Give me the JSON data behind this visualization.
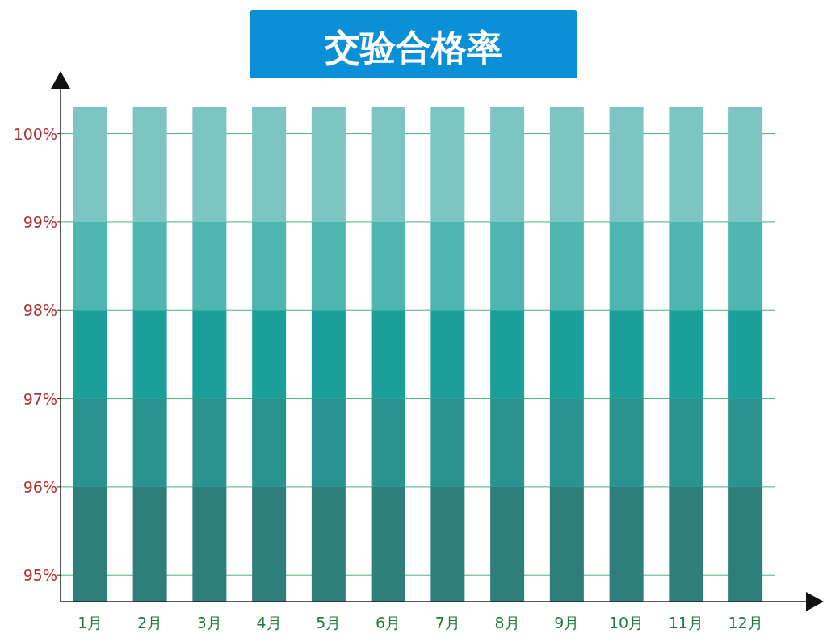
{
  "chart_data": {
    "type": "bar",
    "title": "交验合格率",
    "categories": [
      "1月",
      "2月",
      "3月",
      "4月",
      "5月",
      "6月",
      "7月",
      "8月",
      "9月",
      "10月",
      "11月",
      "12月"
    ],
    "series": [
      {
        "color": "#2e7f7c",
        "base": [
          94.7,
          94.7,
          94.7,
          94.7,
          94.7,
          94.7,
          94.7,
          94.7,
          94.7,
          94.7,
          94.7,
          94.7
        ],
        "values": [
          1.3,
          1.3,
          1.3,
          1.3,
          1.3,
          1.3,
          1.3,
          1.3,
          1.3,
          1.3,
          1.3,
          1.3
        ]
      },
      {
        "color": "#2a9390",
        "base": [
          96,
          96,
          96,
          96,
          96,
          96,
          96,
          96,
          96,
          96,
          96,
          96
        ],
        "values": [
          1,
          1,
          1,
          1,
          1,
          1,
          1,
          1,
          1,
          1,
          1,
          1
        ]
      },
      {
        "color": "#1a9f9a",
        "base": [
          97,
          97,
          97,
          97,
          97,
          97,
          97,
          97,
          97,
          97,
          97,
          97
        ],
        "values": [
          1,
          1,
          1,
          1,
          1,
          1,
          1,
          1,
          1,
          1,
          1,
          1
        ]
      },
      {
        "color": "#4fb5b1",
        "base": [
          98,
          98,
          98,
          98,
          98,
          98,
          98,
          98,
          98,
          98,
          98,
          98
        ],
        "values": [
          1,
          1,
          1,
          1,
          1,
          1,
          1,
          1,
          1,
          1,
          1,
          1
        ]
      },
      {
        "color": "#7cc5c2",
        "base": [
          99,
          99,
          99,
          99,
          99,
          99,
          99,
          99,
          99,
          99,
          99,
          99
        ],
        "values": [
          1.3,
          1.3,
          1.3,
          1.3,
          1.3,
          1.3,
          1.3,
          1.3,
          1.3,
          1.3,
          1.3,
          1.3
        ]
      }
    ],
    "ylim": [
      94.7,
      100.6
    ],
    "yticks": [
      {
        "value": 95,
        "label": "95%"
      },
      {
        "value": 96,
        "label": "96%"
      },
      {
        "value": 97,
        "label": "97%"
      },
      {
        "value": 98,
        "label": "98%"
      },
      {
        "value": 99,
        "label": "99%"
      },
      {
        "value": 100,
        "label": "100%"
      }
    ],
    "grid": "y"
  }
}
